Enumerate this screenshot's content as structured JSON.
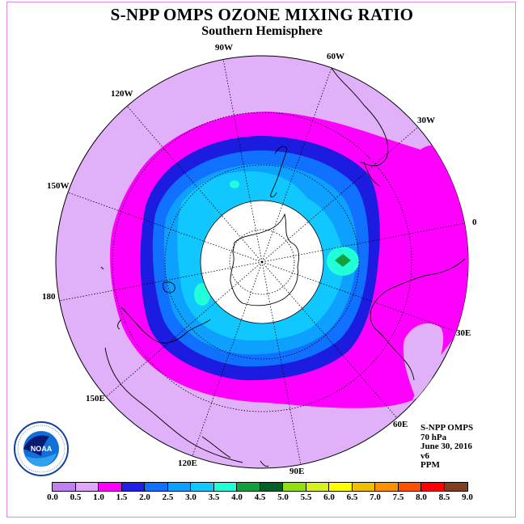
{
  "title": "S-NPP OMPS OZONE MIXING RATIO",
  "subtitle": "Southern Hemisphere",
  "longitude_labels": [
    "90W",
    "60W",
    "30W",
    "0",
    "30E",
    "60E",
    "90E",
    "120E",
    "150E",
    "180",
    "150W",
    "120W"
  ],
  "info": {
    "instrument": "S-NPP OMPS",
    "level": "70 hPa",
    "date": "June 30, 2016",
    "version": "v6",
    "units": "PPM"
  },
  "logo": {
    "text": "NOAA",
    "ring_text": "NATIONAL OCEANIC AND ATMOSPHERIC ADMINISTRATION · U.S. DEPARTMENT OF COMMERCE"
  },
  "colorbar": {
    "colors": [
      "#c080f0",
      "#e0a8f8",
      "#ff00ff",
      "#2020e8",
      "#1070ff",
      "#0ea0ff",
      "#10c8ff",
      "#20ffd8",
      "#10a040",
      "#006028",
      "#90e010",
      "#d8f020",
      "#ffff00",
      "#f0c000",
      "#ff9000",
      "#ff5000",
      "#ff0000",
      "#804020"
    ],
    "ticks": [
      "0.0",
      "0.5",
      "1.0",
      "1.5",
      "2.0",
      "2.5",
      "3.0",
      "3.5",
      "4.0",
      "4.5",
      "5.0",
      "5.5",
      "6.0",
      "6.5",
      "7.0",
      "7.5",
      "8.0",
      "8.5",
      "9.0"
    ]
  }
}
